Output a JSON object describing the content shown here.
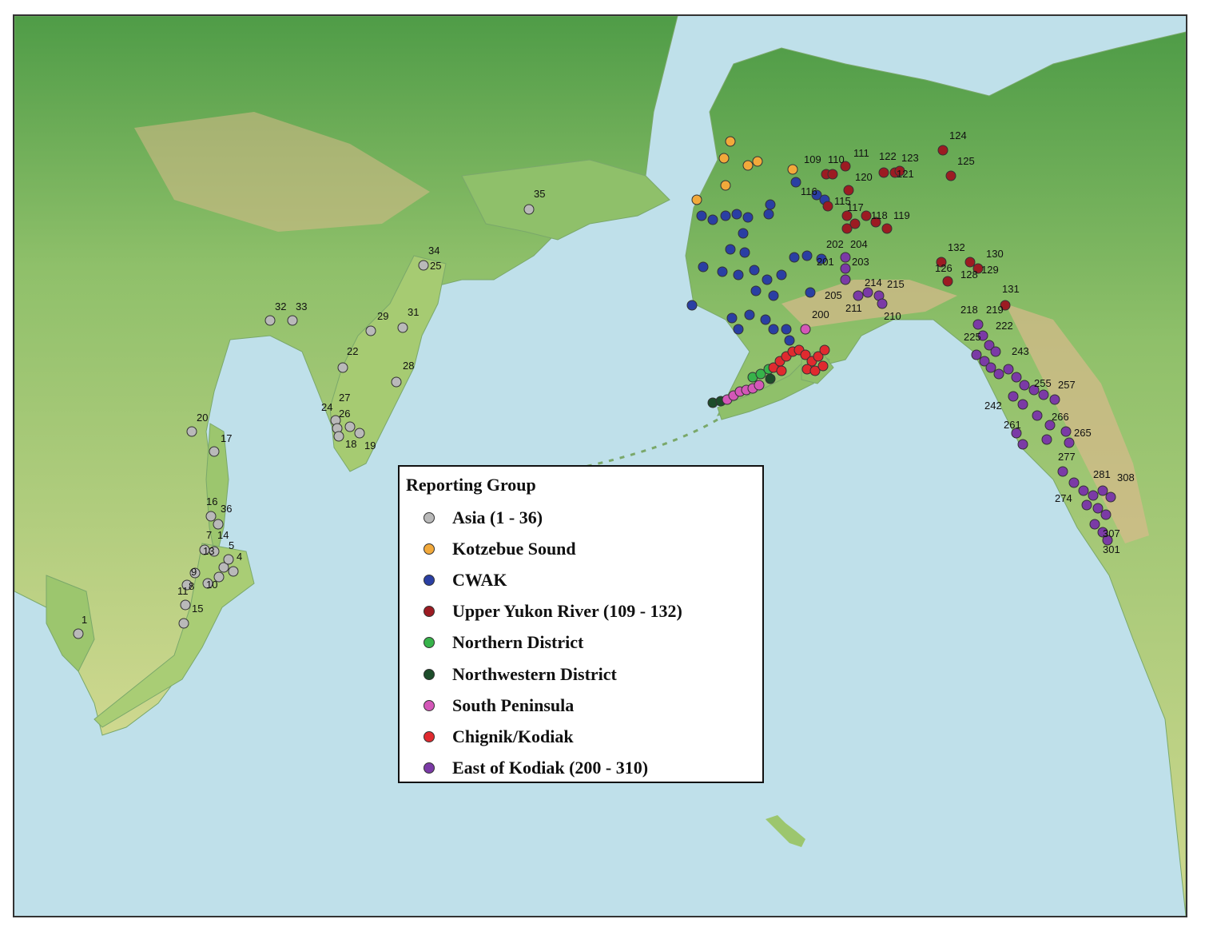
{
  "legend": {
    "title": "Reporting Group",
    "items": [
      {
        "label": "Asia (1 - 36)",
        "color": "#b9b9b9"
      },
      {
        "label": "Kotzebue Sound",
        "color": "#f2a93b"
      },
      {
        "label": "CWAK",
        "color": "#2a3fa3"
      },
      {
        "label": "Upper Yukon River (109 - 132)",
        "color": "#9c1b22"
      },
      {
        "label": "Northern District",
        "color": "#37b34a"
      },
      {
        "label": "Northwestern District",
        "color": "#1d4d2a"
      },
      {
        "label": "South Peninsula",
        "color": "#d457b8"
      },
      {
        "label": "Chignik/Kodiak",
        "color": "#e02a2f"
      },
      {
        "label": "East of Kodiak (200 - 310)",
        "color": "#7b3aa6"
      }
    ]
  },
  "site_labels": [
    "1",
    "4",
    "5",
    "7",
    "8",
    "9",
    "10",
    "11",
    "13",
    "14",
    "15",
    "16",
    "17",
    "18",
    "19",
    "20",
    "22",
    "24",
    "25",
    "26",
    "27",
    "28",
    "29",
    "31",
    "32",
    "33",
    "34",
    "35",
    "36",
    "109",
    "110",
    "111",
    "115",
    "116",
    "117",
    "118",
    "119",
    "120",
    "121",
    "122",
    "123",
    "124",
    "125",
    "126",
    "128",
    "129",
    "130",
    "131",
    "132",
    "200",
    "201",
    "202",
    "203",
    "204",
    "205",
    "210",
    "211",
    "214",
    "215",
    "218",
    "219",
    "222",
    "225",
    "242",
    "243",
    "255",
    "257",
    "261",
    "265",
    "266",
    "274",
    "277",
    "281",
    "301",
    "307",
    "308"
  ],
  "colors": {
    "ocean": "#bfe0ea",
    "lowland": "#7ab85a",
    "forest": "#3f8f3f",
    "upland": "#d7dc92",
    "mountain": "#c9a46e"
  }
}
